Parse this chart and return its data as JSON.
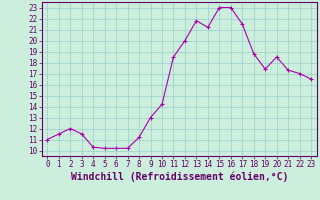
{
  "x": [
    0,
    1,
    2,
    3,
    4,
    5,
    6,
    7,
    8,
    9,
    10,
    11,
    12,
    13,
    14,
    15,
    16,
    17,
    18,
    19,
    20,
    21,
    22,
    23
  ],
  "y": [
    11.0,
    11.5,
    12.0,
    11.5,
    10.3,
    10.2,
    10.2,
    10.2,
    11.2,
    13.0,
    14.2,
    18.5,
    20.0,
    21.8,
    21.2,
    23.0,
    23.0,
    21.5,
    18.8,
    17.4,
    18.5,
    17.3,
    17.0,
    16.5
  ],
  "line_color": "#aa00aa",
  "marker": "+",
  "bg_color": "#cceedd",
  "grid_color": "#99cccc",
  "spine_color": "#660066",
  "tick_color": "#660066",
  "label_color": "#660066",
  "xlabel": "Windchill (Refroidissement éolien,°C)",
  "xlim": [
    -0.5,
    23.5
  ],
  "ylim": [
    9.5,
    23.5
  ],
  "yticks": [
    10,
    11,
    12,
    13,
    14,
    15,
    16,
    17,
    18,
    19,
    20,
    21,
    22,
    23
  ],
  "xticks": [
    0,
    1,
    2,
    3,
    4,
    5,
    6,
    7,
    8,
    9,
    10,
    11,
    12,
    13,
    14,
    15,
    16,
    17,
    18,
    19,
    20,
    21,
    22,
    23
  ],
  "tick_fontsize": 5.5,
  "label_fontsize": 7.0
}
